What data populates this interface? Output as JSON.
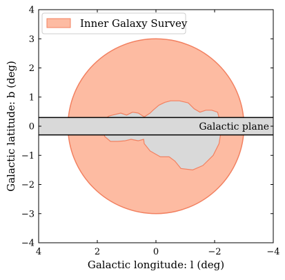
{
  "chart_data": {
    "type": "area",
    "xlabel": "Galactic longitude: l (deg)",
    "ylabel": "Galactic latitude: b (deg)",
    "xlim": [
      4,
      -4
    ],
    "ylim": [
      -4,
      4
    ],
    "x_ticks": [
      4,
      2,
      0,
      -2,
      -4
    ],
    "x_tick_labels": [
      "4",
      "2",
      "0",
      "−2",
      "−4"
    ],
    "y_ticks": [
      -4,
      -3,
      -2,
      -1,
      0,
      1,
      2,
      3,
      4
    ],
    "y_tick_labels": [
      "−4",
      "−3",
      "−2",
      "−1",
      "0",
      "1",
      "2",
      "3",
      "4"
    ],
    "grid": false,
    "legend": {
      "placement": "top-left",
      "entries": [
        "Inner Galaxy Survey"
      ]
    },
    "survey": {
      "name": "Inner Galaxy Survey",
      "shape": "circle",
      "center": [
        0,
        0
      ],
      "radius_deg": 3.0,
      "fill": "#fdbba2",
      "edge": "#f28060"
    },
    "masked_region": {
      "fill": "#d9d9d9",
      "edge": "#f28060",
      "outline": [
        [
          1.8,
          0.2
        ],
        [
          1.6,
          0.35
        ],
        [
          1.4,
          0.4
        ],
        [
          1.2,
          0.45
        ],
        [
          1.0,
          0.38
        ],
        [
          0.8,
          0.48
        ],
        [
          0.6,
          0.45
        ],
        [
          0.4,
          0.32
        ],
        [
          0.2,
          0.45
        ],
        [
          0.1,
          0.55
        ],
        [
          -0.1,
          0.72
        ],
        [
          -0.3,
          0.82
        ],
        [
          -0.5,
          0.87
        ],
        [
          -0.8,
          0.87
        ],
        [
          -1.1,
          0.8
        ],
        [
          -1.3,
          0.6
        ],
        [
          -1.5,
          0.48
        ],
        [
          -1.7,
          0.55
        ],
        [
          -1.9,
          0.55
        ],
        [
          -2.1,
          0.48
        ],
        [
          -2.15,
          0.3
        ],
        [
          -2.18,
          0.0
        ],
        [
          -2.2,
          -0.3
        ],
        [
          -2.15,
          -0.6
        ],
        [
          -1.95,
          -1.0
        ],
        [
          -1.6,
          -1.35
        ],
        [
          -1.25,
          -1.5
        ],
        [
          -0.85,
          -1.45
        ],
        [
          -0.65,
          -1.2
        ],
        [
          -0.45,
          -1.05
        ],
        [
          -0.15,
          -1.05
        ],
        [
          0.2,
          -0.85
        ],
        [
          0.4,
          -0.6
        ],
        [
          0.42,
          -0.45
        ],
        [
          0.6,
          -0.5
        ],
        [
          0.85,
          -0.45
        ],
        [
          1.05,
          -0.5
        ],
        [
          1.3,
          -0.52
        ],
        [
          1.55,
          -0.52
        ],
        [
          1.75,
          -0.35
        ],
        [
          1.8,
          0.0
        ]
      ]
    },
    "galactic_plane": {
      "label": "Galactic plane",
      "b_range": [
        -0.3,
        0.3
      ],
      "fill": "#d9d9d9",
      "edge": "#000000"
    }
  }
}
